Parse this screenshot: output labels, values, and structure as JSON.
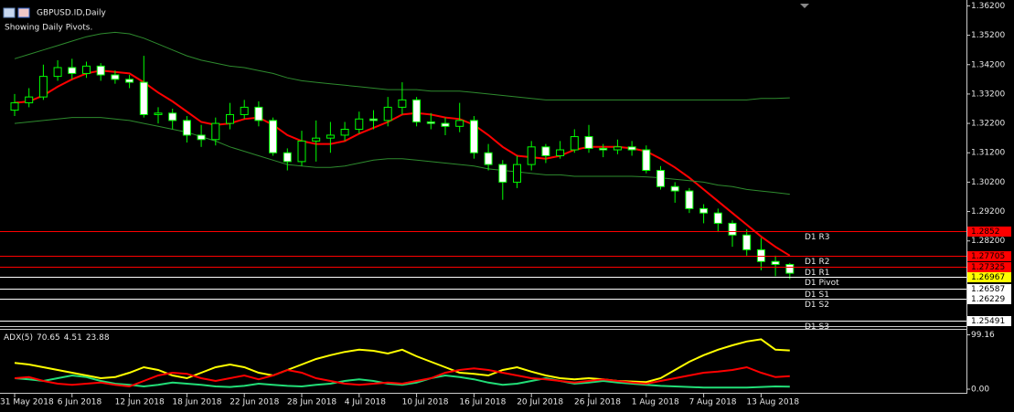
{
  "chart_data": [
    {
      "type": "candlestick",
      "title": "GBPUSD.ID,Daily",
      "subtitle": "Showing Daily Pivots.",
      "categories": [
        "31 May 2018",
        null,
        null,
        null,
        "6 Jun 2018",
        null,
        null,
        null,
        "12 Jun 2018",
        null,
        null,
        null,
        "18 Jun 2018",
        null,
        null,
        null,
        "22 Jun 2018",
        null,
        null,
        null,
        "28 Jun 2018",
        null,
        null,
        null,
        "4 Jul 2018",
        null,
        null,
        null,
        "10 Jul 2018",
        null,
        null,
        null,
        "16 Jul 2018",
        null,
        null,
        null,
        "20 Jul 2018",
        null,
        null,
        null,
        "26 Jul 2018",
        null,
        null,
        null,
        "1 Aug 2018",
        null,
        null,
        null,
        "7 Aug 2018",
        null,
        null,
        null,
        "13 Aug 2018",
        null,
        null
      ],
      "open": [
        1.3265,
        1.329,
        1.331,
        1.338,
        1.341,
        1.339,
        1.3415,
        1.3385,
        1.337,
        1.336,
        1.325,
        1.3255,
        1.323,
        1.318,
        1.3165,
        1.322,
        1.325,
        1.3275,
        1.323,
        1.312,
        1.309,
        1.316,
        1.317,
        1.318,
        1.32,
        1.3235,
        1.323,
        1.3275,
        1.33,
        1.3225,
        1.322,
        1.321,
        1.323,
        1.312,
        1.308,
        1.302,
        1.308,
        1.314,
        1.311,
        1.313,
        1.3175,
        1.3135,
        1.313,
        1.314,
        1.313,
        1.306,
        1.3005,
        1.299,
        1.293,
        1.2915,
        1.288,
        1.284,
        1.279,
        1.275,
        1.274
      ],
      "high": [
        1.332,
        1.334,
        1.342,
        1.3435,
        1.344,
        1.343,
        1.3425,
        1.34,
        1.3385,
        1.345,
        1.3275,
        1.327,
        1.3245,
        1.3215,
        1.324,
        1.329,
        1.33,
        1.3295,
        1.324,
        1.3135,
        1.3195,
        1.323,
        1.3225,
        1.3225,
        1.326,
        1.3265,
        1.331,
        1.336,
        1.331,
        1.3255,
        1.324,
        1.329,
        1.3245,
        1.315,
        1.3095,
        1.311,
        1.316,
        1.315,
        1.316,
        1.32,
        1.3215,
        1.315,
        1.3165,
        1.316,
        1.3145,
        1.3075,
        1.302,
        1.3,
        1.2945,
        1.293,
        1.289,
        1.286,
        1.283,
        1.277,
        1.2745
      ],
      "low": [
        1.3245,
        1.3275,
        1.33,
        1.3365,
        1.337,
        1.3375,
        1.3365,
        1.3355,
        1.334,
        1.324,
        1.322,
        1.32,
        1.3155,
        1.314,
        1.3145,
        1.32,
        1.3235,
        1.321,
        1.311,
        1.306,
        1.3075,
        1.309,
        1.312,
        1.316,
        1.3185,
        1.32,
        1.321,
        1.325,
        1.321,
        1.32,
        1.318,
        1.319,
        1.31,
        1.306,
        1.296,
        1.3,
        1.306,
        1.3085,
        1.31,
        1.312,
        1.312,
        1.3105,
        1.3115,
        1.311,
        1.305,
        1.2995,
        1.295,
        1.2915,
        1.288,
        1.285,
        1.28,
        1.277,
        1.272,
        1.27,
        1.269
      ],
      "close": [
        1.329,
        1.331,
        1.338,
        1.341,
        1.339,
        1.3415,
        1.3385,
        1.337,
        1.336,
        1.325,
        1.3255,
        1.323,
        1.318,
        1.3165,
        1.322,
        1.325,
        1.3275,
        1.323,
        1.312,
        1.309,
        1.316,
        1.317,
        1.318,
        1.32,
        1.3235,
        1.323,
        1.3275,
        1.33,
        1.3225,
        1.322,
        1.321,
        1.323,
        1.312,
        1.308,
        1.302,
        1.308,
        1.314,
        1.311,
        1.313,
        1.3175,
        1.3135,
        1.313,
        1.314,
        1.313,
        1.306,
        1.3005,
        1.299,
        1.293,
        1.2915,
        1.288,
        1.284,
        1.279,
        1.275,
        1.274,
        1.271
      ],
      "up_color": "#000000",
      "down_color": "#ffffff",
      "wick_color": "#00ff00",
      "series": [
        {
          "color": "#ff0000",
          "values": [
            1.329,
            1.3295,
            1.3315,
            1.3345,
            1.337,
            1.339,
            1.34,
            1.3395,
            1.339,
            1.336,
            1.3325,
            1.3295,
            1.326,
            1.3225,
            1.3215,
            1.322,
            1.3235,
            1.324,
            1.3215,
            1.318,
            1.316,
            1.315,
            1.315,
            1.316,
            1.3185,
            1.3205,
            1.3225,
            1.325,
            1.3255,
            1.325,
            1.324,
            1.3235,
            1.3215,
            1.318,
            1.314,
            1.311,
            1.3105,
            1.31,
            1.311,
            1.313,
            1.314,
            1.314,
            1.314,
            1.3135,
            1.3125,
            1.31,
            1.307,
            1.3035,
            1.2995,
            1.2955,
            1.2915,
            1.2875,
            1.2835,
            1.28,
            1.277
          ]
        },
        {
          "color": "#2e8b2e",
          "values": [
            1.344,
            1.3455,
            1.347,
            1.3485,
            1.35,
            1.3515,
            1.3525,
            1.353,
            1.3525,
            1.351,
            1.349,
            1.347,
            1.345,
            1.3435,
            1.3425,
            1.3415,
            1.341,
            1.34,
            1.339,
            1.3375,
            1.3365,
            1.336,
            1.3355,
            1.335,
            1.3345,
            1.334,
            1.3335,
            1.3335,
            1.3335,
            1.333,
            1.333,
            1.333,
            1.3325,
            1.332,
            1.3315,
            1.331,
            1.3305,
            1.33,
            1.33,
            1.33,
            1.33,
            1.33,
            1.33,
            1.33,
            1.33,
            1.33,
            1.33,
            1.33,
            1.33,
            1.33,
            1.33,
            1.33,
            1.3305,
            1.3305,
            1.3307
          ]
        },
        {
          "color": "#2e8b2e",
          "values": [
            1.322,
            1.3225,
            1.323,
            1.3235,
            1.324,
            1.324,
            1.324,
            1.3235,
            1.323,
            1.322,
            1.321,
            1.32,
            1.319,
            1.3175,
            1.316,
            1.314,
            1.3125,
            1.311,
            1.3095,
            1.308,
            1.3075,
            1.307,
            1.307,
            1.3075,
            1.3085,
            1.3095,
            1.31,
            1.31,
            1.3095,
            1.309,
            1.3085,
            1.308,
            1.3075,
            1.3065,
            1.306,
            1.3055,
            1.305,
            1.3045,
            1.3045,
            1.304,
            1.304,
            1.304,
            1.304,
            1.304,
            1.3038,
            1.3035,
            1.303,
            1.3025,
            1.302,
            1.301,
            1.3005,
            1.2995,
            1.299,
            1.2985,
            1.2979
          ]
        }
      ],
      "levels": [
        {
          "name": "D1 R3",
          "value": 1.2852,
          "color": "#ff0000",
          "box_color": "#ff0000"
        },
        {
          "name": "D1 R2",
          "value": 1.27705,
          "color": "#ff0000",
          "box_color": "#ff0000"
        },
        {
          "name": "D1 R1",
          "value": 1.27325,
          "color": "#ff0000",
          "box_color": "#ff0000"
        },
        {
          "name": "D1 Pivot",
          "value": 1.26967,
          "color": "#ffffff",
          "box_color": "#ffff00"
        },
        {
          "name": "D1 S1",
          "value": 1.26587,
          "color": "#ffffff",
          "box_color": "#ffffff"
        },
        {
          "name": "D1 S2",
          "value": 1.26229,
          "color": "#ffffff",
          "box_color": "#ffffff"
        },
        {
          "name": "D1 S3",
          "value": 1.25491,
          "color": "#ffffff",
          "box_color": "#ffffff"
        }
      ],
      "ylim": [
        1.253,
        1.364
      ],
      "yticks": [
        {
          "value": 1.362,
          "label": "1.36200"
        },
        {
          "value": 1.352,
          "label": "1.35200"
        },
        {
          "value": 1.342,
          "label": "1.34200"
        },
        {
          "value": 1.332,
          "label": "1.33200"
        },
        {
          "value": 1.322,
          "label": "1.32200"
        },
        {
          "value": 1.312,
          "label": "1.31200"
        },
        {
          "value": 1.302,
          "label": "1.30200"
        },
        {
          "value": 1.292,
          "label": "1.29200"
        },
        {
          "value": 1.282,
          "label": "1.28200"
        }
      ]
    },
    {
      "type": "line",
      "title": "ADX(5)",
      "series": [
        {
          "color": "#ffff00",
          "values": [
            48,
            45,
            40,
            35,
            30,
            25,
            20,
            22,
            30,
            40,
            35,
            25,
            20,
            30,
            40,
            45,
            40,
            30,
            25,
            35,
            45,
            55,
            62,
            68,
            72,
            70,
            65,
            72,
            60,
            50,
            40,
            30,
            28,
            25,
            35,
            40,
            32,
            25,
            20,
            18,
            20,
            18,
            15,
            14,
            13,
            20,
            35,
            50,
            62,
            72,
            80,
            87,
            91,
            72,
            70.65
          ]
        },
        {
          "color": "#22dd77",
          "values": [
            20,
            18,
            15,
            20,
            25,
            22,
            15,
            10,
            8,
            5,
            8,
            12,
            10,
            8,
            5,
            4,
            6,
            10,
            8,
            6,
            5,
            8,
            10,
            15,
            18,
            15,
            10,
            8,
            12,
            20,
            25,
            22,
            18,
            12,
            8,
            10,
            15,
            20,
            15,
            10,
            12,
            15,
            12,
            10,
            8,
            6,
            5,
            4,
            3,
            3,
            3,
            3,
            4,
            5,
            4.51
          ]
        },
        {
          "color": "#ff0000",
          "values": [
            20,
            22,
            15,
            10,
            8,
            10,
            12,
            8,
            5,
            15,
            25,
            30,
            28,
            20,
            15,
            20,
            25,
            18,
            25,
            35,
            30,
            20,
            15,
            10,
            8,
            10,
            12,
            10,
            15,
            20,
            30,
            35,
            38,
            35,
            30,
            25,
            20,
            18,
            15,
            12,
            15,
            18,
            15,
            12,
            10,
            15,
            20,
            25,
            30,
            32,
            35,
            40,
            30,
            22,
            23.88
          ]
        }
      ],
      "ylim": [
        0,
        100
      ],
      "yticks": [
        {
          "value": 99.16,
          "label": "99.16"
        },
        {
          "value": 0,
          "label": "0.00"
        }
      ]
    }
  ]
}
